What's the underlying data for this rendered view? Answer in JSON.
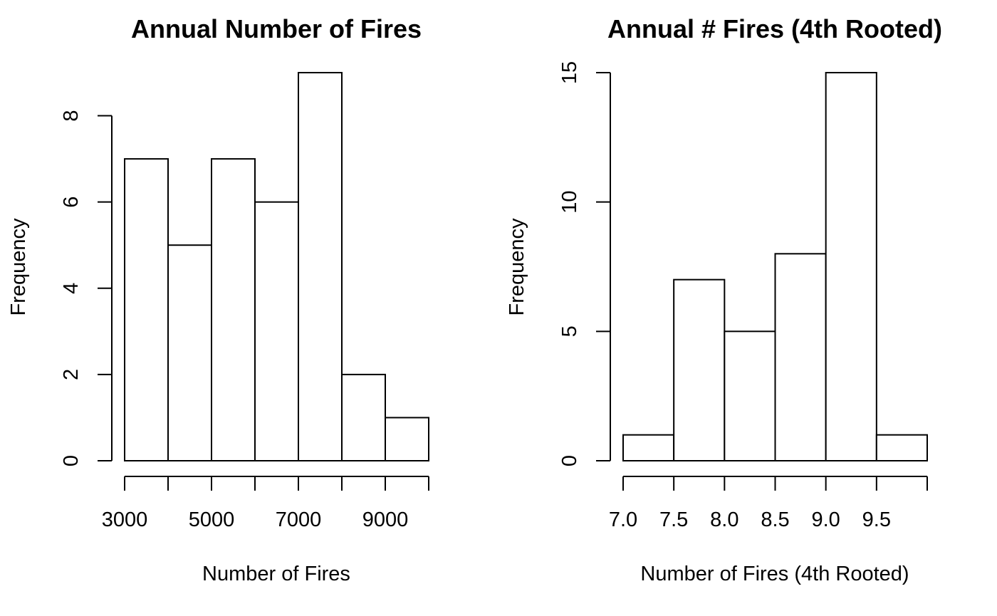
{
  "chart_data": [
    {
      "type": "bar",
      "title": "Annual Number of Fires",
      "xlabel": "Number of Fires",
      "ylabel": "Frequency",
      "bins": [
        {
          "from": 3000,
          "to": 4000,
          "count": 7
        },
        {
          "from": 4000,
          "to": 5000,
          "count": 5
        },
        {
          "from": 5000,
          "to": 6000,
          "count": 7
        },
        {
          "from": 6000,
          "to": 7000,
          "count": 6
        },
        {
          "from": 7000,
          "to": 8000,
          "count": 9
        },
        {
          "from": 8000,
          "to": 9000,
          "count": 2
        },
        {
          "from": 9000,
          "to": 10000,
          "count": 1
        }
      ],
      "xlim": [
        3000,
        10000
      ],
      "x_ticks": [
        3000,
        4000,
        5000,
        6000,
        7000,
        8000,
        9000,
        10000
      ],
      "x_tick_labels": [
        "3000",
        "",
        "5000",
        "",
        "7000",
        "",
        "9000",
        ""
      ],
      "ylim": [
        0,
        9
      ],
      "y_ticks": [
        0,
        2,
        4,
        6,
        8
      ],
      "y_tick_labels": [
        "0",
        "2",
        "4",
        "6",
        "8"
      ]
    },
    {
      "type": "bar",
      "title": "Annual # Fires (4th Rooted)",
      "xlabel": "Number of Fires (4th Rooted)",
      "ylabel": "Frequency",
      "bins": [
        {
          "from": 7.0,
          "to": 7.5,
          "count": 1
        },
        {
          "from": 7.5,
          "to": 8.0,
          "count": 7
        },
        {
          "from": 8.0,
          "to": 8.5,
          "count": 5
        },
        {
          "from": 8.5,
          "to": 9.0,
          "count": 8
        },
        {
          "from": 9.0,
          "to": 9.5,
          "count": 15
        },
        {
          "from": 9.5,
          "to": 10.0,
          "count": 1
        }
      ],
      "xlim": [
        7.0,
        10.0
      ],
      "x_ticks": [
        7.0,
        7.5,
        8.0,
        8.5,
        9.0,
        9.5,
        10.0
      ],
      "x_tick_labels": [
        "7.0",
        "7.5",
        "8.0",
        "8.5",
        "9.0",
        "9.5",
        ""
      ],
      "ylim": [
        0,
        15
      ],
      "y_ticks": [
        0,
        5,
        10,
        15
      ],
      "y_tick_labels": [
        "0",
        "5",
        "10",
        "15"
      ]
    }
  ]
}
